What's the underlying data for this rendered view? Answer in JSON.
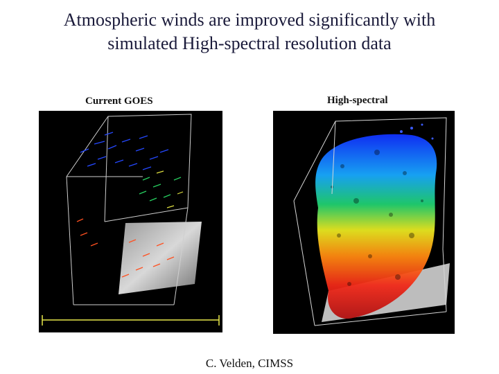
{
  "slide": {
    "title_line1": "Atmospheric winds are improved significantly with",
    "title_line2": "simulated High-spectral resolution data",
    "left_label": "Current GOES",
    "right_label": "High-spectral",
    "credit": "C. Velden, CIMSS"
  },
  "colors": {
    "background": "#ffffff",
    "panel": "#000000",
    "axis_yellow": "#e8e84a",
    "wind_high": "#1f3cff",
    "wind_mid": "#20d060",
    "wind_low": "#e83020"
  }
}
